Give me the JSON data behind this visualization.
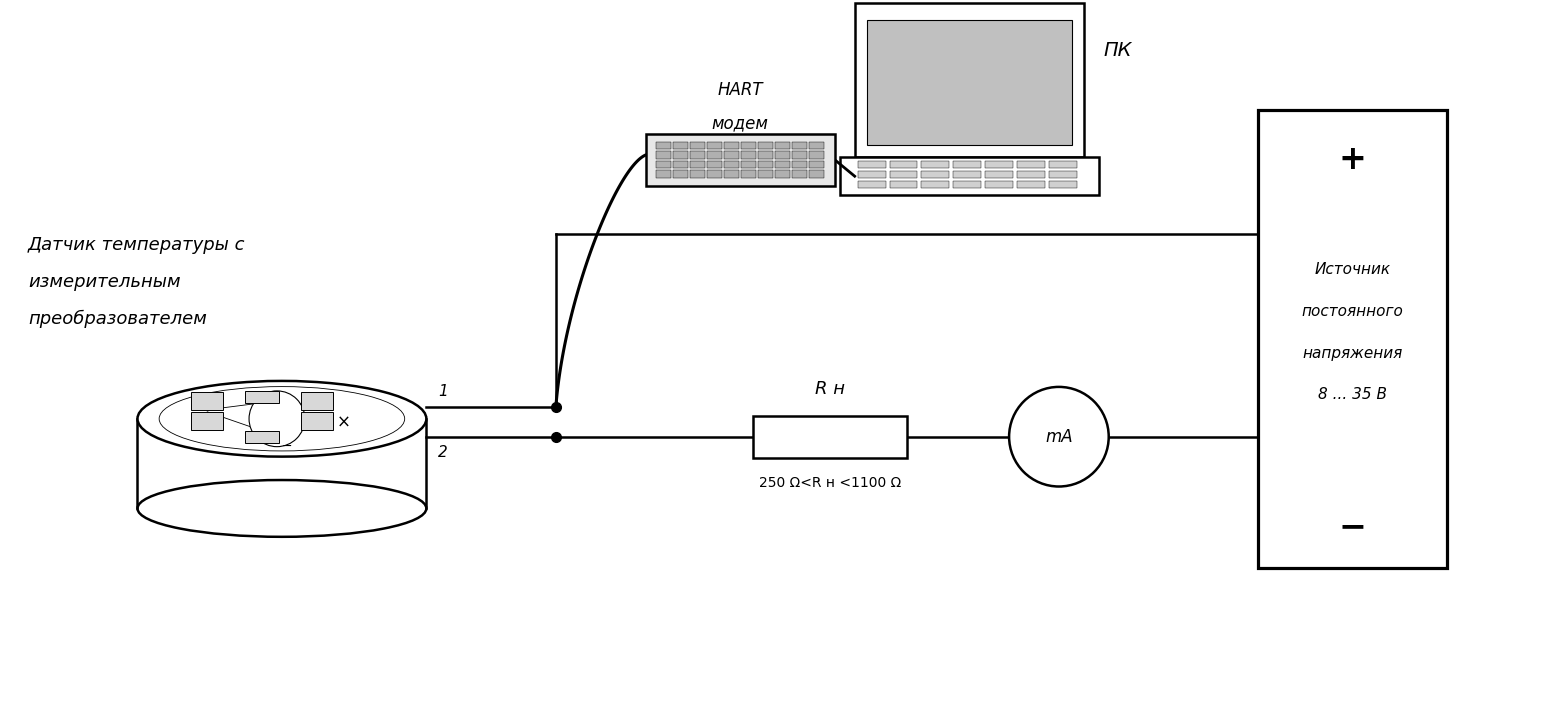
{
  "bg_color": "#ffffff",
  "line_color": "#000000",
  "fig_width": 15.54,
  "fig_height": 7.19,
  "sensor_label_line1": "Датчик температуры с",
  "sensor_label_line2": "измерительным",
  "sensor_label_line3": "преобразователем",
  "hart_label_line1": "HART",
  "hart_label_line2": "модем",
  "pc_label": "ПК",
  "source_label_line1": "Источник",
  "source_label_line2": "постоянного",
  "source_label_line3": "напряжения",
  "source_label_line4": "8 ... 35 В",
  "resistor_label": "R н",
  "resistor_range": "250 Ω<R н <1100 Ω",
  "ma_label": "mA",
  "terminal1": "1",
  "terminal2": "2",
  "plus_label": "+",
  "minus_label": "−"
}
